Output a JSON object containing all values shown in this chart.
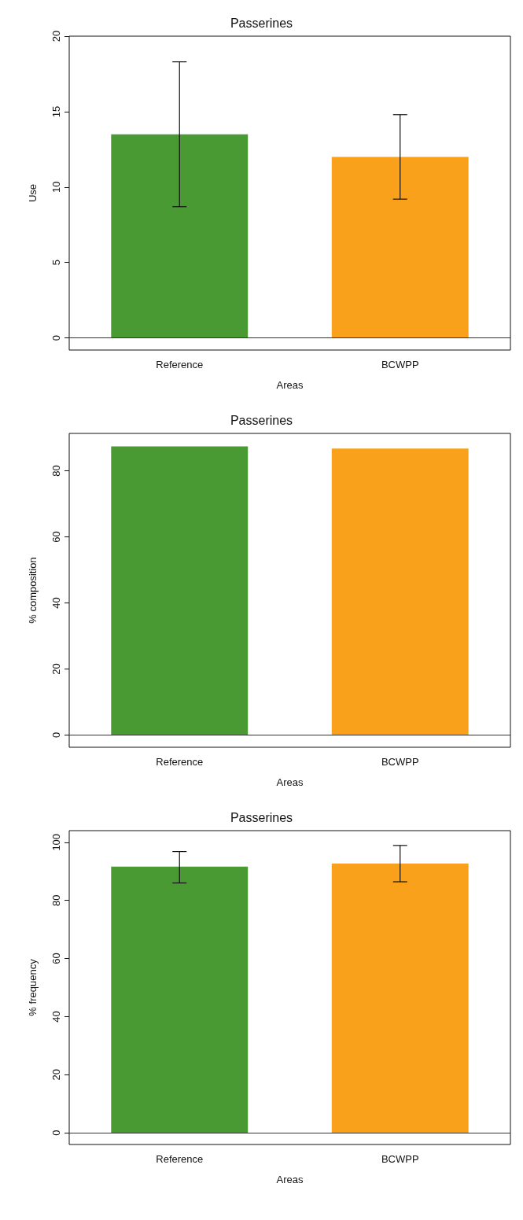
{
  "chart_data": [
    {
      "type": "bar",
      "title": "Passerines",
      "xlabel": "Areas",
      "ylabel": "Use",
      "categories": [
        "Reference",
        "BCWPP"
      ],
      "values": [
        13.5,
        12.0
      ],
      "colors": [
        "#4a9a34",
        "#f9a11b"
      ],
      "errors": [
        [
          8.7,
          18.3
        ],
        [
          9.2,
          14.8
        ]
      ],
      "ylim": [
        -0.8,
        20
      ],
      "yticks": [
        0,
        5,
        10,
        15,
        20
      ],
      "grid": false,
      "ref_lines": [
        {
          "axis": "y",
          "value": 0
        }
      ]
    },
    {
      "type": "bar",
      "title": "Passerines",
      "xlabel": "Areas",
      "ylabel": "% composition",
      "categories": [
        "Reference",
        "BCWPP"
      ],
      "values": [
        87.4,
        86.7
      ],
      "colors": [
        "#4a9a34",
        "#f9a11b"
      ],
      "ylim": [
        -3.7,
        91.3
      ],
      "yticks": [
        0,
        20,
        40,
        60,
        80
      ],
      "grid": false,
      "ref_lines": [
        {
          "axis": "y",
          "value": 0
        }
      ]
    },
    {
      "type": "bar",
      "title": "Passerines",
      "xlabel": "Areas",
      "ylabel": "% frequency",
      "categories": [
        "Reference",
        "BCWPP"
      ],
      "values": [
        91.6,
        92.7
      ],
      "colors": [
        "#4a9a34",
        "#f9a11b"
      ],
      "errors": [
        [
          86.0,
          96.8
        ],
        [
          86.4,
          98.9
        ]
      ],
      "ylim": [
        -4,
        104
      ],
      "yticks": [
        0,
        20,
        40,
        60,
        80,
        100
      ],
      "grid": false,
      "ref_lines": [
        {
          "axis": "y",
          "value": 0
        }
      ]
    }
  ]
}
